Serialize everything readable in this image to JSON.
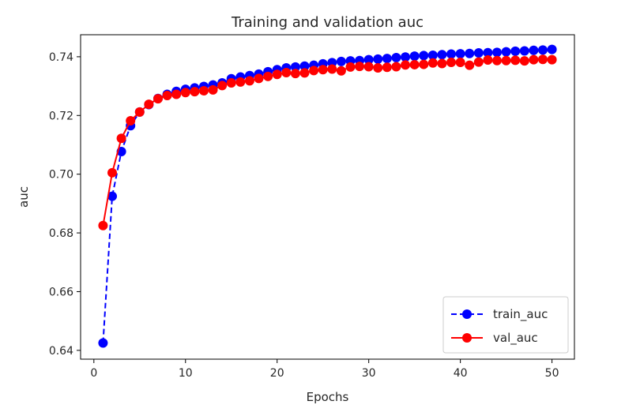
{
  "chart_data": {
    "type": "line",
    "title": "Training and validation auc",
    "xlabel": "Epochs",
    "ylabel": "auc",
    "xlim": [
      -1.45,
      52.45
    ],
    "ylim": [
      0.637,
      0.7475
    ],
    "xticks": [
      0,
      10,
      20,
      30,
      40,
      50
    ],
    "yticks": [
      0.64,
      0.66,
      0.68,
      0.7,
      0.72,
      0.74
    ],
    "ytick_labels": [
      "0.64",
      "0.66",
      "0.68",
      "0.70",
      "0.72",
      "0.74"
    ],
    "grid": false,
    "legend_position": "lower right",
    "x": [
      1,
      2,
      3,
      4,
      5,
      6,
      7,
      8,
      9,
      10,
      11,
      12,
      13,
      14,
      15,
      16,
      17,
      18,
      19,
      20,
      21,
      22,
      23,
      24,
      25,
      26,
      27,
      28,
      29,
      30,
      31,
      32,
      33,
      34,
      35,
      36,
      37,
      38,
      39,
      40,
      41,
      42,
      43,
      44,
      45,
      46,
      47,
      48,
      49,
      50
    ],
    "series": [
      {
        "name": "train_auc",
        "color": "#0000ff",
        "linestyle": "dashed",
        "marker": "circle",
        "values": [
          0.6425,
          0.6925,
          0.7077,
          0.7165,
          0.7212,
          0.7237,
          0.7258,
          0.7272,
          0.7282,
          0.7289,
          0.7294,
          0.7299,
          0.7304,
          0.7311,
          0.7325,
          0.7331,
          0.7336,
          0.7341,
          0.7349,
          0.7356,
          0.7362,
          0.7365,
          0.7368,
          0.7371,
          0.7376,
          0.738,
          0.7384,
          0.7386,
          0.7387,
          0.739,
          0.7392,
          0.7394,
          0.7397,
          0.7399,
          0.7402,
          0.7404,
          0.7405,
          0.7407,
          0.7409,
          0.741,
          0.7411,
          0.7413,
          0.7414,
          0.7415,
          0.7417,
          0.7419,
          0.742,
          0.7422,
          0.7423,
          0.7425
        ]
      },
      {
        "name": "val_auc",
        "color": "#ff0000",
        "linestyle": "solid",
        "marker": "circle",
        "values": [
          0.6825,
          0.7005,
          0.7122,
          0.7182,
          0.7212,
          0.7238,
          0.7257,
          0.7268,
          0.7272,
          0.7278,
          0.7281,
          0.7284,
          0.7287,
          0.7302,
          0.7311,
          0.7314,
          0.7318,
          0.7326,
          0.7333,
          0.734,
          0.7346,
          0.7343,
          0.7345,
          0.7353,
          0.7356,
          0.7358,
          0.7352,
          0.7365,
          0.7367,
          0.7366,
          0.7362,
          0.7364,
          0.7366,
          0.7372,
          0.7373,
          0.7374,
          0.7379,
          0.7377,
          0.7381,
          0.7381,
          0.7371,
          0.7382,
          0.7389,
          0.7387,
          0.7387,
          0.7388,
          0.7386,
          0.739,
          0.7391,
          0.739
        ]
      }
    ]
  }
}
